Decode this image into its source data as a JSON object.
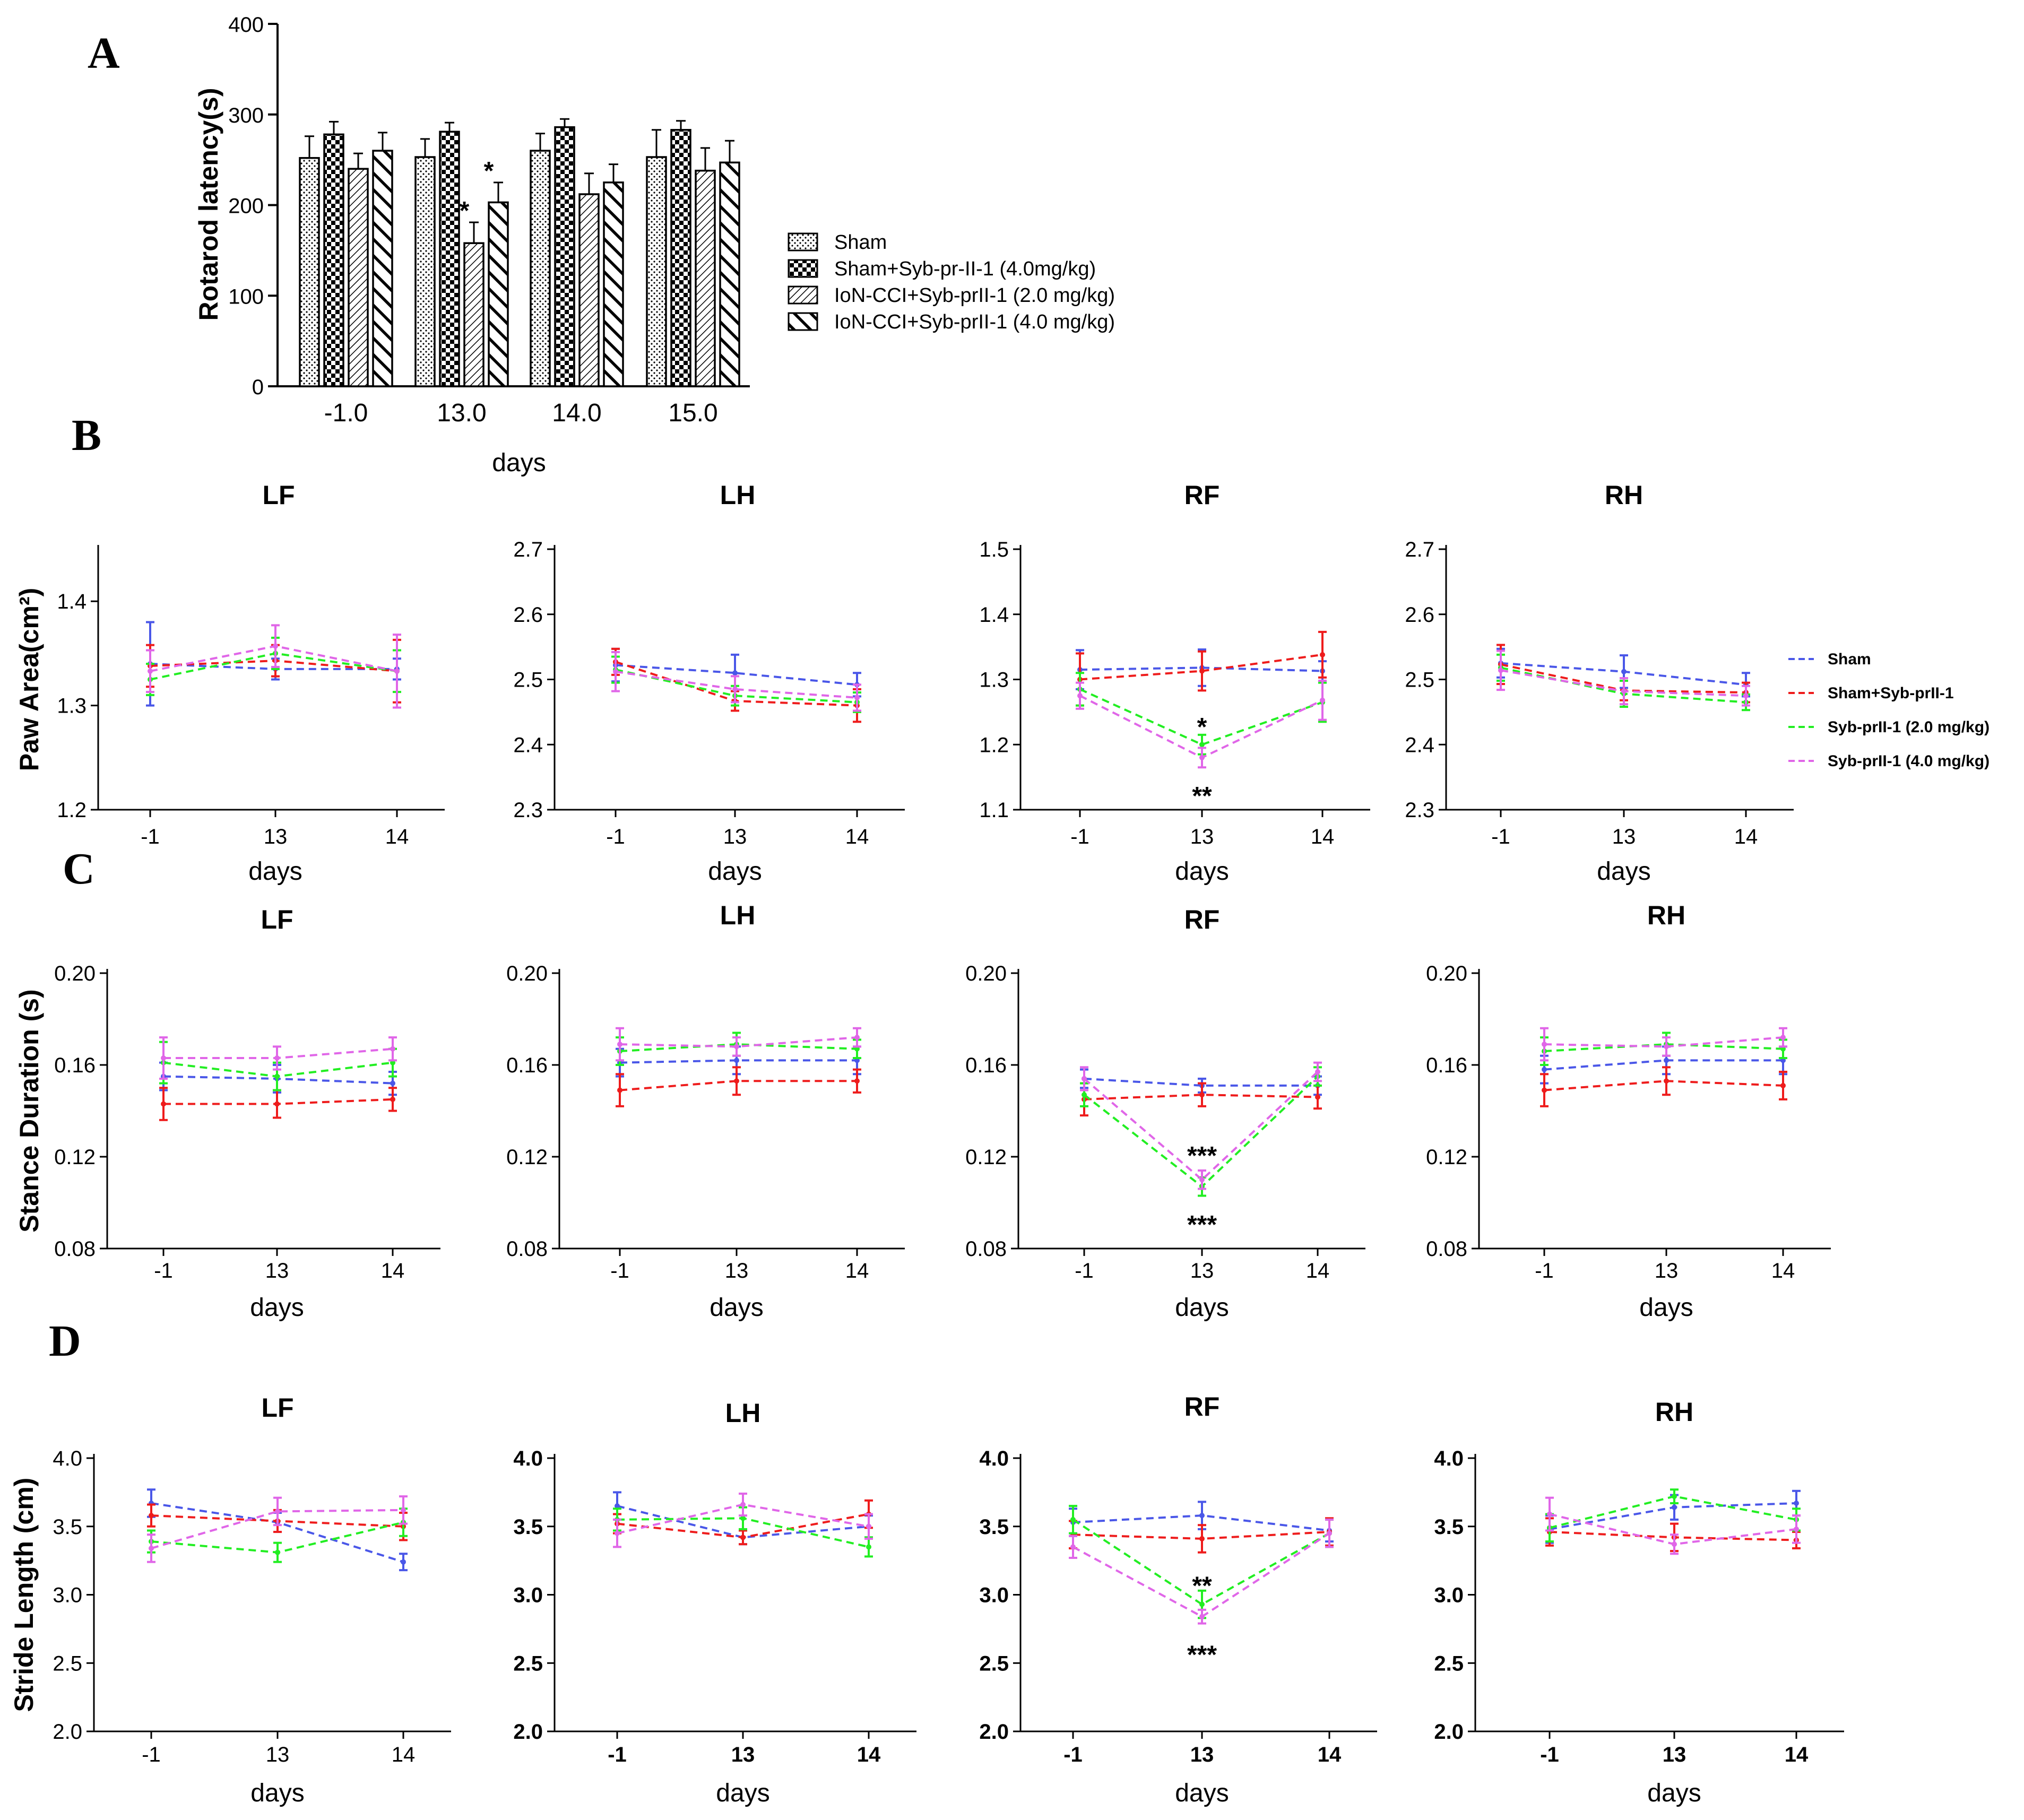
{
  "panel_labels": [
    "A",
    "B",
    "C",
    "D"
  ],
  "colors": {
    "Sham": "#4a57e8",
    "Sham+Syb-prII-1": "#ee1c1c",
    "Syb-prII-1 (2.0 mg/kg)": "#22ee22",
    "Syb-prII-1 (4.0 mg/kg)": "#e066e8"
  },
  "chart_data": [
    {
      "id": "A",
      "type": "bar",
      "ylabel": "Rotarod latency(s)",
      "xlabel": "days",
      "ylim": [
        0,
        400
      ],
      "yticks": [
        "0",
        "100",
        "200",
        "300",
        "400"
      ],
      "categories": [
        "-1.0",
        "13.0",
        "14.0",
        "15.0"
      ],
      "series": [
        {
          "name": "Sham",
          "pattern": "dots",
          "values": [
            252,
            253,
            260,
            253
          ],
          "errors": [
            24,
            20,
            19,
            30
          ]
        },
        {
          "name": "Sham+Syb-pr-II-1 (4.0mg/kg)",
          "pattern": "checker",
          "values": [
            278,
            281,
            286,
            283
          ],
          "errors": [
            14,
            10,
            9,
            10
          ]
        },
        {
          "name": "IoN-CCI+Syb-prII-1 (2.0 mg/kg)",
          "pattern": "thin-diagonal",
          "values": [
            240,
            158,
            212,
            238
          ],
          "errors": [
            17,
            23,
            23,
            25
          ]
        },
        {
          "name": "IoN-CCI+Syb-prII-1 (4.0 mg/kg)",
          "pattern": "thick-diagonal",
          "values": [
            260,
            203,
            225,
            247
          ],
          "errors": [
            20,
            22,
            20,
            24
          ]
        }
      ],
      "annotations": [
        {
          "text": "*",
          "category": "13.0",
          "series": 2
        },
        {
          "text": "*",
          "category": "13.0",
          "series": 3
        }
      ]
    },
    {
      "id": "B-LF",
      "type": "line",
      "title": "LF",
      "xlabel": "days",
      "ylabel": "Paw Area(cm²)",
      "x": [
        "-1",
        "13",
        "14"
      ],
      "ylim": [
        1.2,
        1.45
      ],
      "yticks": [
        "1.2",
        "1.3",
        "1.4"
      ],
      "series": [
        {
          "name": "Sham",
          "values": [
            1.34,
            1.335,
            1.335
          ],
          "errors": [
            0.04,
            0.01,
            0.01
          ]
        },
        {
          "name": "Sham+Syb-prII-1",
          "values": [
            1.338,
            1.343,
            1.333
          ],
          "errors": [
            0.02,
            0.015,
            0.03
          ]
        },
        {
          "name": "Syb-prII-1 (2.0 mg/kg)",
          "values": [
            1.325,
            1.35,
            1.333
          ],
          "errors": [
            0.015,
            0.015,
            0.02
          ]
        },
        {
          "name": "Syb-prII-1 (4.0 mg/kg)",
          "values": [
            1.333,
            1.357,
            1.333
          ],
          "errors": [
            0.02,
            0.02,
            0.035
          ]
        }
      ]
    },
    {
      "id": "B-LH",
      "type": "line",
      "title": "LH",
      "xlabel": "days",
      "ylabel": "",
      "x": [
        "-1",
        "13",
        "14"
      ],
      "ylim": [
        2.3,
        2.7
      ],
      "yticks": [
        "2.3",
        "2.4",
        "2.5",
        "2.6",
        "2.7"
      ],
      "series": [
        {
          "name": "Sham",
          "values": [
            2.522,
            2.51,
            2.492
          ],
          "errors": [
            0.025,
            0.028,
            0.018
          ]
        },
        {
          "name": "Sham+Syb-prII-1",
          "values": [
            2.527,
            2.467,
            2.46
          ],
          "errors": [
            0.02,
            0.015,
            0.025
          ]
        },
        {
          "name": "Syb-prII-1 (2.0 mg/kg)",
          "values": [
            2.515,
            2.475,
            2.465
          ],
          "errors": [
            0.02,
            0.015,
            0.015
          ]
        },
        {
          "name": "Syb-prII-1 (4.0 mg/kg)",
          "values": [
            2.512,
            2.485,
            2.472
          ],
          "errors": [
            0.03,
            0.02,
            0.02
          ]
        }
      ]
    },
    {
      "id": "B-RF",
      "type": "line",
      "title": "RF",
      "xlabel": "days",
      "ylabel": "",
      "x": [
        "-1",
        "13",
        "14"
      ],
      "ylim": [
        1.1,
        1.5
      ],
      "yticks": [
        "1.1",
        "1.2",
        "1.3",
        "1.4",
        "1.5"
      ],
      "series": [
        {
          "name": "Sham",
          "values": [
            1.315,
            1.318,
            1.313
          ],
          "errors": [
            0.03,
            0.028,
            0.015
          ]
        },
        {
          "name": "Sham+Syb-prII-1",
          "values": [
            1.3,
            1.313,
            1.338
          ],
          "errors": [
            0.04,
            0.03,
            0.035
          ]
        },
        {
          "name": "Syb-prII-1 (2.0 mg/kg)",
          "values": [
            1.285,
            1.2,
            1.265
          ],
          "errors": [
            0.025,
            0.015,
            0.03
          ]
        },
        {
          "name": "Syb-prII-1 (4.0 mg/kg)",
          "values": [
            1.275,
            1.18,
            1.268
          ],
          "errors": [
            0.02,
            0.015,
            0.03
          ]
        }
      ],
      "annotations": [
        {
          "text": "*",
          "x": "13",
          "position": "above"
        },
        {
          "text": "**",
          "x": "13",
          "position": "below"
        }
      ]
    },
    {
      "id": "B-RH",
      "type": "line",
      "title": "RH",
      "xlabel": "days",
      "ylabel": "",
      "x": [
        "-1",
        "13",
        "14"
      ],
      "ylim": [
        2.3,
        2.7
      ],
      "yticks": [
        "2.3",
        "2.4",
        "2.5",
        "2.6",
        "2.7"
      ],
      "series": [
        {
          "name": "Sham",
          "values": [
            2.525,
            2.512,
            2.492
          ],
          "errors": [
            0.022,
            0.025,
            0.018
          ]
        },
        {
          "name": "Sham+Syb-prII-1",
          "values": [
            2.523,
            2.483,
            2.48
          ],
          "errors": [
            0.03,
            0.015,
            0.015
          ]
        },
        {
          "name": "Syb-prII-1 (2.0 mg/kg)",
          "values": [
            2.518,
            2.478,
            2.465
          ],
          "errors": [
            0.02,
            0.02,
            0.012
          ]
        },
        {
          "name": "Syb-prII-1 (4.0 mg/kg)",
          "values": [
            2.514,
            2.482,
            2.475
          ],
          "errors": [
            0.03,
            0.02,
            0.015
          ]
        }
      ]
    },
    {
      "id": "C-LF",
      "type": "line",
      "title": "LF",
      "xlabel": "days",
      "ylabel": "Stance Duration (s)",
      "x": [
        "-1",
        "13",
        "14"
      ],
      "ylim": [
        0.08,
        0.2
      ],
      "yticks": [
        "0.08",
        "0.12",
        "0.16",
        "0.20"
      ],
      "series": [
        {
          "name": "Sham",
          "values": [
            0.155,
            0.154,
            0.152
          ],
          "errors": [
            0.006,
            0.006,
            0.005
          ]
        },
        {
          "name": "Sham+Syb-prII-1",
          "values": [
            0.143,
            0.143,
            0.145
          ],
          "errors": [
            0.007,
            0.006,
            0.005
          ]
        },
        {
          "name": "Syb-prII-1 (2.0 mg/kg)",
          "values": [
            0.161,
            0.155,
            0.161
          ],
          "errors": [
            0.009,
            0.006,
            0.006
          ]
        },
        {
          "name": "Syb-prII-1 (4.0 mg/kg)",
          "values": [
            0.163,
            0.163,
            0.167
          ],
          "errors": [
            0.009,
            0.005,
            0.005
          ]
        }
      ]
    },
    {
      "id": "C-LH",
      "type": "line",
      "title": "LH",
      "xlabel": "days",
      "ylabel": "",
      "x": [
        "-1",
        "13",
        "14"
      ],
      "ylim": [
        0.08,
        0.2
      ],
      "yticks": [
        "0.08",
        "0.12",
        "0.16",
        "0.20"
      ],
      "series": [
        {
          "name": "Sham",
          "values": [
            0.161,
            0.162,
            0.162
          ],
          "errors": [
            0.006,
            0.006,
            0.006
          ]
        },
        {
          "name": "Sham+Syb-prII-1",
          "values": [
            0.149,
            0.153,
            0.153
          ],
          "errors": [
            0.007,
            0.006,
            0.005
          ]
        },
        {
          "name": "Syb-prII-1 (2.0 mg/kg)",
          "values": [
            0.166,
            0.169,
            0.167
          ],
          "errors": [
            0.006,
            0.005,
            0.004
          ]
        },
        {
          "name": "Syb-prII-1 (4.0 mg/kg)",
          "values": [
            0.169,
            0.168,
            0.172
          ],
          "errors": [
            0.007,
            0.004,
            0.004
          ]
        }
      ]
    },
    {
      "id": "C-RF",
      "type": "line",
      "title": "RF",
      "xlabel": "days",
      "ylabel": "",
      "x": [
        "-1",
        "13",
        "14"
      ],
      "ylim": [
        0.08,
        0.2
      ],
      "yticks": [
        "0.08",
        "0.12",
        "0.16",
        "0.20"
      ],
      "series": [
        {
          "name": "Sham",
          "values": [
            0.154,
            0.151,
            0.151
          ],
          "errors": [
            0.004,
            0.003,
            0.004
          ]
        },
        {
          "name": "Sham+Syb-prII-1",
          "values": [
            0.145,
            0.147,
            0.146
          ],
          "errors": [
            0.007,
            0.005,
            0.005
          ]
        },
        {
          "name": "Syb-prII-1 (2.0 mg/kg)",
          "values": [
            0.147,
            0.107,
            0.155
          ],
          "errors": [
            0.005,
            0.004,
            0.004
          ]
        },
        {
          "name": "Syb-prII-1 (4.0 mg/kg)",
          "values": [
            0.154,
            0.11,
            0.157
          ],
          "errors": [
            0.005,
            0.004,
            0.004
          ]
        }
      ],
      "annotations": [
        {
          "text": "***",
          "x": "13",
          "position": "above"
        },
        {
          "text": "***",
          "x": "13",
          "position": "below"
        }
      ]
    },
    {
      "id": "C-RH",
      "type": "line",
      "title": "RH",
      "xlabel": "days",
      "ylabel": "",
      "x": [
        "-1",
        "13",
        "14"
      ],
      "ylim": [
        0.08,
        0.2
      ],
      "yticks": [
        "0.08",
        "0.12",
        "0.16",
        "0.20"
      ],
      "series": [
        {
          "name": "Sham",
          "values": [
            0.158,
            0.162,
            0.162
          ],
          "errors": [
            0.006,
            0.006,
            0.006
          ]
        },
        {
          "name": "Sham+Syb-prII-1",
          "values": [
            0.149,
            0.153,
            0.151
          ],
          "errors": [
            0.007,
            0.006,
            0.006
          ]
        },
        {
          "name": "Syb-prII-1 (2.0 mg/kg)",
          "values": [
            0.166,
            0.169,
            0.167
          ],
          "errors": [
            0.006,
            0.005,
            0.004
          ]
        },
        {
          "name": "Syb-prII-1 (4.0 mg/kg)",
          "values": [
            0.169,
            0.168,
            0.172
          ],
          "errors": [
            0.007,
            0.004,
            0.004
          ]
        }
      ]
    },
    {
      "id": "D-LF",
      "type": "line",
      "title": "LF",
      "xlabel": "days",
      "ylabel": "Stride Length (cm)",
      "x": [
        "-1",
        "13",
        "14"
      ],
      "ylim": [
        2.0,
        4.0
      ],
      "yticks": [
        "2.0",
        "2.5",
        "3.0",
        "3.5",
        "4.0"
      ],
      "bold_ticks": false,
      "series": [
        {
          "name": "Sham",
          "values": [
            3.67,
            3.53,
            3.24
          ],
          "errors": [
            0.1,
            0.07,
            0.06
          ]
        },
        {
          "name": "Sham+Syb-prII-1",
          "values": [
            3.58,
            3.54,
            3.5
          ],
          "errors": [
            0.08,
            0.08,
            0.1
          ]
        },
        {
          "name": "Syb-prII-1 (2.0 mg/kg)",
          "values": [
            3.39,
            3.31,
            3.53
          ],
          "errors": [
            0.08,
            0.07,
            0.1
          ]
        },
        {
          "name": "Syb-prII-1 (4.0 mg/kg)",
          "values": [
            3.34,
            3.61,
            3.62
          ],
          "errors": [
            0.1,
            0.1,
            0.1
          ]
        }
      ]
    },
    {
      "id": "D-LH",
      "type": "line",
      "title": "LH",
      "xlabel": "days",
      "ylabel": "",
      "x": [
        "-1",
        "13",
        "14"
      ],
      "ylim": [
        2.0,
        4.0
      ],
      "yticks": [
        "2.0",
        "2.5",
        "3.0",
        "3.5",
        "4.0"
      ],
      "bold_ticks": true,
      "series": [
        {
          "name": "Sham",
          "values": [
            3.65,
            3.42,
            3.5
          ],
          "errors": [
            0.1,
            0.05,
            0.08
          ]
        },
        {
          "name": "Sham+Syb-prII-1",
          "values": [
            3.52,
            3.42,
            3.59
          ],
          "errors": [
            0.07,
            0.05,
            0.1
          ]
        },
        {
          "name": "Syb-prII-1 (2.0 mg/kg)",
          "values": [
            3.55,
            3.56,
            3.35
          ],
          "errors": [
            0.08,
            0.08,
            0.07
          ]
        },
        {
          "name": "Syb-prII-1 (4.0 mg/kg)",
          "values": [
            3.45,
            3.66,
            3.5
          ],
          "errors": [
            0.1,
            0.08,
            0.09
          ]
        }
      ]
    },
    {
      "id": "D-RF",
      "type": "line",
      "title": "RF",
      "xlabel": "days",
      "ylabel": "",
      "x": [
        "-1",
        "13",
        "14"
      ],
      "ylim": [
        2.0,
        4.0
      ],
      "yticks": [
        "2.0",
        "2.5",
        "3.0",
        "3.5",
        "4.0"
      ],
      "bold_ticks": true,
      "series": [
        {
          "name": "Sham",
          "values": [
            3.53,
            3.58,
            3.47
          ],
          "errors": [
            0.1,
            0.1,
            0.08
          ]
        },
        {
          "name": "Sham+Syb-prII-1",
          "values": [
            3.44,
            3.41,
            3.46
          ],
          "errors": [
            0.1,
            0.1,
            0.1
          ]
        },
        {
          "name": "Syb-prII-1 (2.0 mg/kg)",
          "values": [
            3.55,
            2.93,
            3.45
          ],
          "errors": [
            0.1,
            0.1,
            0.1
          ]
        },
        {
          "name": "Syb-prII-1 (4.0 mg/kg)",
          "values": [
            3.35,
            2.84,
            3.45
          ],
          "errors": [
            0.08,
            0.05,
            0.1
          ]
        }
      ],
      "annotations": [
        {
          "text": "**",
          "x": "13",
          "position": "above"
        },
        {
          "text": "***",
          "x": "13",
          "position": "below"
        }
      ]
    },
    {
      "id": "D-RH",
      "type": "line",
      "title": "RH",
      "xlabel": "days",
      "ylabel": "",
      "x": [
        "-1",
        "13",
        "14"
      ],
      "ylim": [
        2.0,
        4.0
      ],
      "yticks": [
        "2.0",
        "2.5",
        "3.0",
        "3.5",
        "4.0"
      ],
      "bold_ticks": true,
      "series": [
        {
          "name": "Sham",
          "values": [
            3.48,
            3.64,
            3.67
          ],
          "errors": [
            0.1,
            0.09,
            0.09
          ]
        },
        {
          "name": "Sham+Syb-prII-1",
          "values": [
            3.46,
            3.42,
            3.4
          ],
          "errors": [
            0.1,
            0.1,
            0.06
          ]
        },
        {
          "name": "Syb-prII-1 (2.0 mg/kg)",
          "values": [
            3.49,
            3.72,
            3.55
          ],
          "errors": [
            0.1,
            0.05,
            0.08
          ]
        },
        {
          "name": "Syb-prII-1 (4.0 mg/kg)",
          "values": [
            3.59,
            3.37,
            3.48
          ],
          "errors": [
            0.12,
            0.07,
            0.1
          ]
        }
      ]
    }
  ],
  "legend_lines": {
    "entries": [
      "Sham",
      "Sham+Syb-prII-1",
      "Syb-prII-1 (2.0 mg/kg)",
      "Syb-prII-1 (4.0 mg/kg)"
    ]
  }
}
